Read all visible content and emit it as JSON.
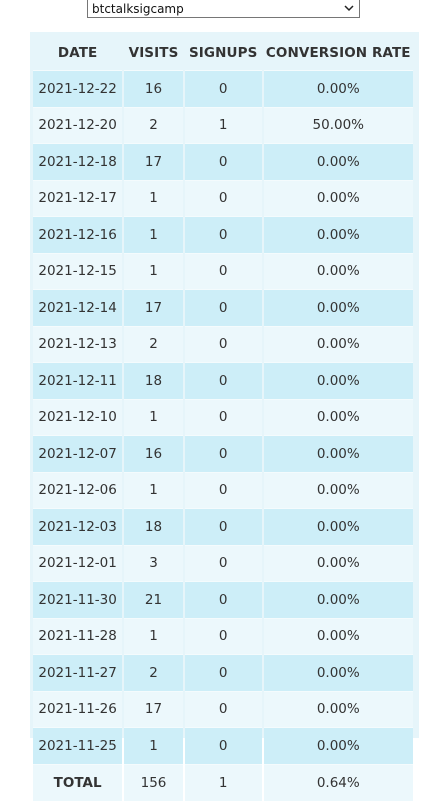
{
  "campaign_select": {
    "selected": "btctalksigcamp"
  },
  "table": {
    "headers": [
      "DATE",
      "VISITS",
      "SIGNUPS",
      "CONVERSION RATE"
    ],
    "rows": [
      [
        "2021-12-22",
        "16",
        "0",
        "0.00%"
      ],
      [
        "2021-12-20",
        "2",
        "1",
        "50.00%"
      ],
      [
        "2021-12-18",
        "17",
        "0",
        "0.00%"
      ],
      [
        "2021-12-17",
        "1",
        "0",
        "0.00%"
      ],
      [
        "2021-12-16",
        "1",
        "0",
        "0.00%"
      ],
      [
        "2021-12-15",
        "1",
        "0",
        "0.00%"
      ],
      [
        "2021-12-14",
        "17",
        "0",
        "0.00%"
      ],
      [
        "2021-12-13",
        "2",
        "0",
        "0.00%"
      ],
      [
        "2021-12-11",
        "18",
        "0",
        "0.00%"
      ],
      [
        "2021-12-10",
        "1",
        "0",
        "0.00%"
      ],
      [
        "2021-12-07",
        "16",
        "0",
        "0.00%"
      ],
      [
        "2021-12-06",
        "1",
        "0",
        "0.00%"
      ],
      [
        "2021-12-03",
        "18",
        "0",
        "0.00%"
      ],
      [
        "2021-12-01",
        "3",
        "0",
        "0.00%"
      ],
      [
        "2021-11-30",
        "21",
        "0",
        "0.00%"
      ],
      [
        "2021-11-28",
        "1",
        "0",
        "0.00%"
      ],
      [
        "2021-11-27",
        "2",
        "0",
        "0.00%"
      ],
      [
        "2021-11-26",
        "17",
        "0",
        "0.00%"
      ],
      [
        "2021-11-25",
        "1",
        "0",
        "0.00%"
      ]
    ],
    "total": {
      "label": "TOTAL",
      "visits": "156",
      "signups": "1",
      "conversion_rate": "0.64%"
    }
  }
}
